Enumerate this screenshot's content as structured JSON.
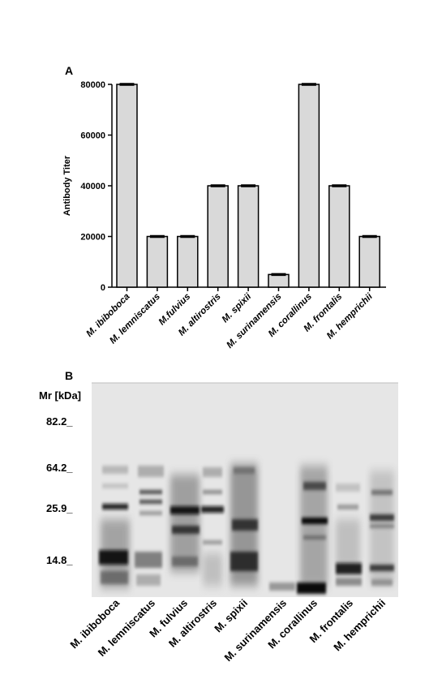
{
  "panel_a": {
    "label": "A",
    "chart_data": {
      "type": "bar",
      "title": "",
      "ylabel": "Antibody Titer",
      "xlabel": "",
      "ylim": [
        0,
        80000
      ],
      "yticks": [
        "0",
        "20000",
        "40000",
        "60000",
        "80000"
      ],
      "categories": [
        "M. ibiboboca",
        "M. lemniscatus",
        "M.fulvius",
        "M. altirostris",
        "M. spixii",
        "M. surinamensis",
        "M. corallinus",
        "M. frontalis",
        "M. hemprichii"
      ],
      "values": [
        80000,
        20000,
        20000,
        40000,
        40000,
        5000,
        80000,
        40000,
        20000
      ],
      "error_bars": true,
      "bar_color": "#d9d9d9",
      "grid": false
    }
  },
  "panel_b": {
    "label": "B",
    "mr_title": "Mr [kDa]",
    "markers": [
      {
        "label": "82.2_",
        "kda": 82.2
      },
      {
        "label": "64.2_",
        "kda": 64.2
      },
      {
        "label": "25.9_",
        "kda": 25.9
      },
      {
        "label": "14.8_",
        "kda": 14.8
      }
    ],
    "lanes": [
      "M. ibiboboca",
      "M. lemniscatus",
      "M. fulvius",
      "M. altirostris",
      "M. spixii",
      "M. surinamensis",
      "M. corallinus",
      "M. frontalis",
      "M. hemprichii"
    ],
    "background_color": "#e6e6e6",
    "band_color": "#1a1a1a"
  }
}
